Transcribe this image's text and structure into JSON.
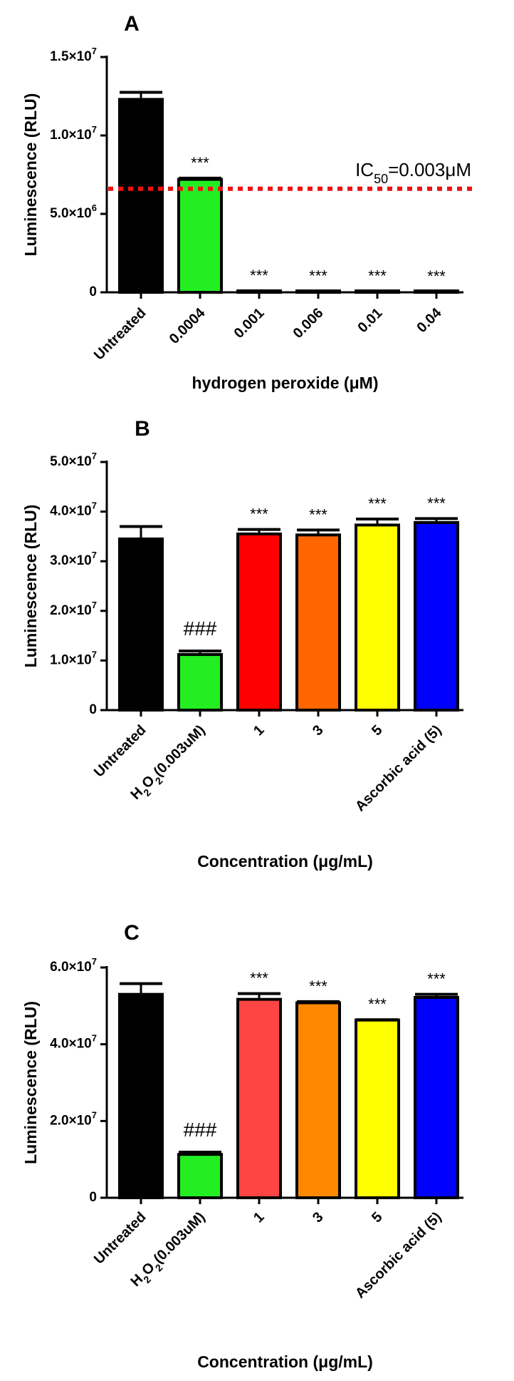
{
  "chart_data": [
    {
      "type": "bar",
      "panel": "A",
      "categories": [
        "Untreated",
        "0.0004",
        "0.001",
        "0.006",
        "0.01",
        "0.04"
      ],
      "values": [
        12300000,
        7200000,
        80000,
        60000,
        50000,
        40000
      ],
      "errors": [
        450000,
        80000,
        15000,
        15000,
        10000,
        10000
      ],
      "colors": [
        "#000000",
        "#22ee22",
        "#000000",
        "#000000",
        "#000000",
        "#000000"
      ],
      "annotations": [
        "",
        "***",
        "***",
        "***",
        "***",
        "***"
      ],
      "xlabel": "hydrogen peroxide (μM)",
      "ylabel": "Luminescence (RLU)",
      "ylim": [
        0,
        15000000
      ],
      "ytick_values": [
        0,
        5000000,
        10000000,
        15000000
      ],
      "ytick_labels": [
        "0",
        "5.0×10^6",
        "1.0×10^7",
        "1.5×10^7"
      ],
      "reference_line": {
        "value": 6600000,
        "color": "#ee1111",
        "label_main": "IC",
        "label_sub": "50",
        "label_rest": "=0.003μM"
      },
      "grid": false
    },
    {
      "type": "bar",
      "panel": "B",
      "categories": [
        "Untreated",
        "H2O2(0.003uM)",
        "1",
        "3",
        "5",
        "Ascorbic acid (5)"
      ],
      "values": [
        34500000,
        11200000,
        35500000,
        35300000,
        37300000,
        37800000
      ],
      "errors": [
        2500000,
        700000,
        900000,
        1000000,
        1200000,
        800000
      ],
      "colors": [
        "#000000",
        "#22ee22",
        "#ff0000",
        "#ff6600",
        "#ffff00",
        "#0000ff"
      ],
      "annotations": [
        "",
        "###",
        "***",
        "***",
        "***",
        "***"
      ],
      "xlabel": "Concentration (μg/mL)",
      "ylabel": "Luminescence (RLU)",
      "ylim": [
        0,
        50000000
      ],
      "ytick_values": [
        0,
        10000000,
        20000000,
        30000000,
        40000000,
        50000000
      ],
      "ytick_labels": [
        "0",
        "1.0×10^7",
        "2.0×10^7",
        "3.0×10^7",
        "4.0×10^7",
        "5.0×10^7"
      ],
      "grid": false
    },
    {
      "type": "bar",
      "panel": "C",
      "categories": [
        "Untreated",
        "H2O2(0.003uM)",
        "1",
        "3",
        "5",
        "Ascorbic acid (5)"
      ],
      "values": [
        53000000,
        11300000,
        51700000,
        50800000,
        46300000,
        52200000
      ],
      "errors": [
        2800000,
        600000,
        1500000,
        300000,
        100000,
        800000
      ],
      "colors": [
        "#000000",
        "#22ee22",
        "#ff4444",
        "#ff8800",
        "#ffff00",
        "#0000ff"
      ],
      "annotations": [
        "",
        "###",
        "***",
        "***",
        "***",
        "***"
      ],
      "xlabel": "Concentration (μg/mL)",
      "ylabel": "Luminescence (RLU)",
      "ylim": [
        0,
        60000000
      ],
      "ytick_values": [
        0,
        20000000,
        40000000,
        60000000
      ],
      "ytick_labels": [
        "0",
        "2.0×10^7",
        "4.0×10^7",
        "6.0×10^7"
      ],
      "grid": false
    }
  ]
}
